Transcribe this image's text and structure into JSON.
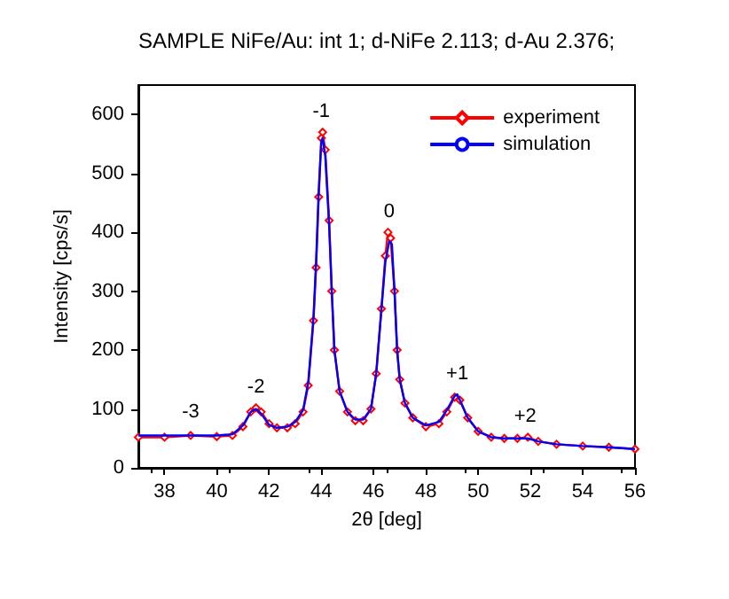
{
  "chart_data": {
    "type": "line",
    "title": "SAMPLE NiFe/Au: int 1; d-NiFe 2.113; d-Au 2.376;",
    "xlabel": "2θ [deg]",
    "ylabel": "Intensity [cps/s]",
    "xlim": [
      37,
      56
    ],
    "xticks": [
      38,
      40,
      42,
      44,
      46,
      48,
      50,
      52,
      54,
      56
    ],
    "ylim": [
      0,
      650
    ],
    "yticks": [
      0,
      100,
      200,
      300,
      400,
      500,
      600
    ],
    "grid": false,
    "legend": "top right",
    "series": [
      {
        "name": "experiment",
        "color": "#ff0000",
        "marker": "diamond",
        "x": [
          37,
          38,
          39,
          40,
          40.6,
          41,
          41.3,
          41.5,
          41.7,
          42,
          42.3,
          42.7,
          43,
          43.3,
          43.5,
          43.7,
          43.8,
          43.9,
          44,
          44.05,
          44.15,
          44.3,
          44.4,
          44.5,
          44.7,
          45,
          45.3,
          45.6,
          45.9,
          46.1,
          46.3,
          46.45,
          46.55,
          46.65,
          46.8,
          46.9,
          47,
          47.2,
          47.5,
          48,
          48.5,
          48.8,
          49.1,
          49.3,
          49.6,
          50,
          50.5,
          51,
          51.5,
          51.9,
          52.3,
          53,
          54,
          55,
          56
        ],
        "values": [
          52,
          52,
          55,
          53,
          55,
          70,
          95,
          102,
          95,
          75,
          68,
          68,
          75,
          95,
          140,
          250,
          340,
          460,
          560,
          570,
          540,
          420,
          300,
          200,
          130,
          95,
          80,
          80,
          100,
          160,
          270,
          360,
          400,
          390,
          300,
          200,
          150,
          110,
          85,
          70,
          75,
          95,
          120,
          115,
          85,
          62,
          52,
          50,
          50,
          52,
          45,
          40,
          37,
          35,
          32
        ]
      },
      {
        "name": "simulation",
        "color": "#0000ff",
        "marker": "none",
        "x": [
          37,
          38,
          39,
          40,
          40.6,
          41,
          41.3,
          41.5,
          41.7,
          42,
          42.3,
          42.7,
          43,
          43.3,
          43.5,
          43.7,
          43.8,
          43.9,
          44,
          44.05,
          44.15,
          44.3,
          44.4,
          44.5,
          44.7,
          45,
          45.3,
          45.6,
          45.9,
          46.1,
          46.3,
          46.45,
          46.6,
          46.7,
          46.8,
          46.9,
          47,
          47.2,
          47.5,
          48,
          48.5,
          48.8,
          49.1,
          49.2,
          49.3,
          49.6,
          50,
          50.5,
          51,
          51.5,
          51.9,
          52.3,
          53,
          54,
          55,
          56
        ],
        "values": [
          55,
          55,
          55,
          55,
          57,
          72,
          95,
          100,
          92,
          73,
          68,
          70,
          78,
          98,
          145,
          255,
          350,
          470,
          555,
          560,
          530,
          410,
          300,
          200,
          130,
          95,
          82,
          82,
          100,
          160,
          270,
          350,
          385,
          380,
          300,
          200,
          150,
          110,
          85,
          72,
          78,
          98,
          122,
          125,
          115,
          85,
          62,
          52,
          50,
          50,
          50,
          45,
          40,
          37,
          35,
          32
        ]
      }
    ],
    "annotations": [
      {
        "text": "-3",
        "x": 39,
        "y": 60
      },
      {
        "text": "-2",
        "x": 41.5,
        "y": 102
      },
      {
        "text": "-1",
        "x": 44,
        "y": 570
      },
      {
        "text": "0",
        "x": 46.6,
        "y": 400
      },
      {
        "text": "+1",
        "x": 49.2,
        "y": 125
      },
      {
        "text": "+2",
        "x": 51.8,
        "y": 52
      }
    ]
  }
}
